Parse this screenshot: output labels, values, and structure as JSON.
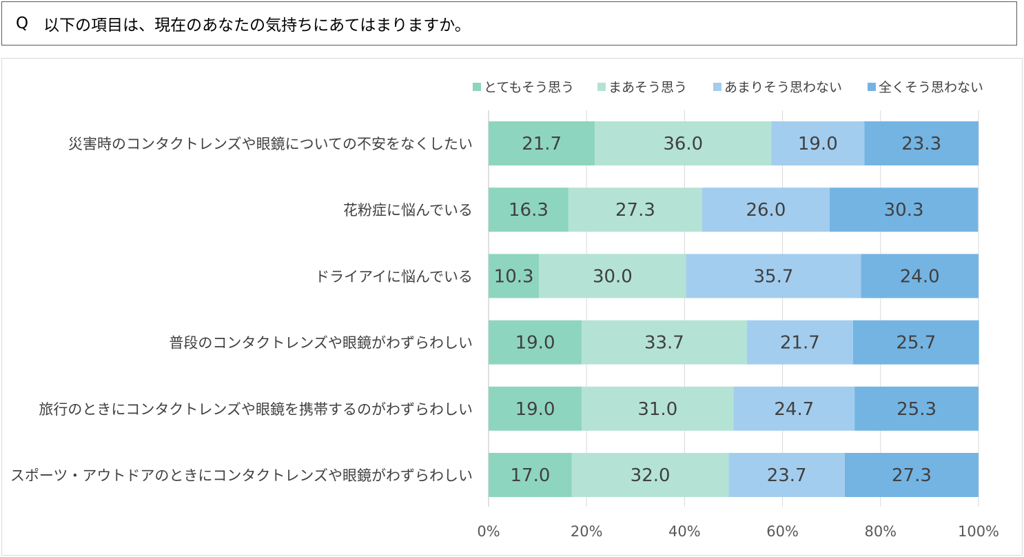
{
  "question": {
    "prefix": "Q",
    "text": "以下の項目は、現在のあなたの気持ちにあてはまりますか。"
  },
  "chart_data": {
    "type": "bar",
    "orientation": "horizontal",
    "stacked": true,
    "title": "",
    "legend_position": "top-right",
    "categories": [
      "災害時のコンタクトレンズや眼鏡についての不安をなくしたい",
      "花粉症に悩んでいる",
      "ドライアイに悩んでいる",
      "普段のコンタクトレンズや眼鏡がわずらわしい",
      "旅行のときにコンタクトレンズや眼鏡を携帯するのがわずらわしい",
      "スポーツ・アウトドアのときにコンタクトレンズや眼鏡がわずらわしい"
    ],
    "series": [
      {
        "name": "とてもそう思う",
        "color": "#8ed5bf",
        "values": [
          21.7,
          16.3,
          10.3,
          19.0,
          19.0,
          17.0
        ]
      },
      {
        "name": "まあそう思う",
        "color": "#b4e3d5",
        "values": [
          36.0,
          27.3,
          30.0,
          33.7,
          31.0,
          32.0
        ]
      },
      {
        "name": "あまりそう思わない",
        "color": "#a3cdee",
        "values": [
          19.0,
          26.0,
          35.7,
          21.7,
          24.7,
          23.7
        ]
      },
      {
        "name": "全くそう思わない",
        "color": "#74b4e3",
        "values": [
          23.3,
          30.3,
          24.0,
          25.7,
          25.3,
          27.3
        ]
      }
    ],
    "xlim": [
      0,
      100
    ],
    "xticks": [
      "0%",
      "20%",
      "40%",
      "60%",
      "80%",
      "100%"
    ],
    "grid": true
  }
}
